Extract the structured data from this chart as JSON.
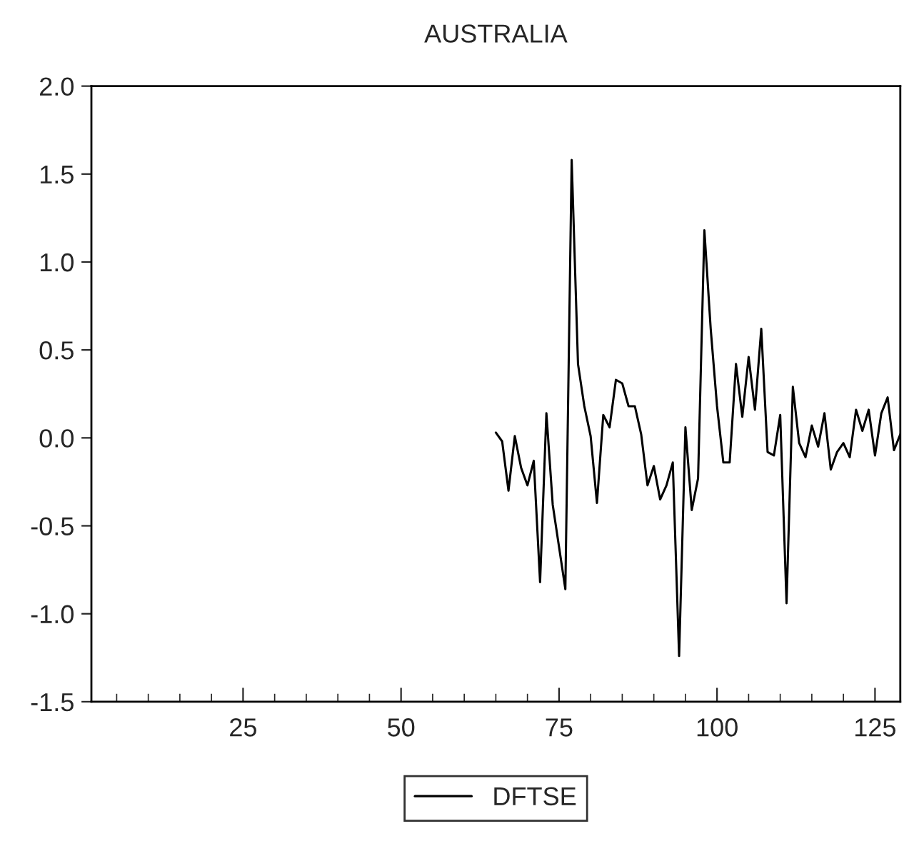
{
  "chart_data": {
    "type": "line",
    "title": "AUSTRALIA",
    "x": [
      65,
      66,
      67,
      68,
      69,
      70,
      71,
      72,
      73,
      74,
      75,
      76,
      77,
      78,
      79,
      80,
      81,
      82,
      83,
      84,
      85,
      86,
      87,
      88,
      89,
      90,
      91,
      92,
      93,
      94,
      95,
      96,
      97,
      98,
      99,
      100,
      101,
      102,
      103,
      104,
      105,
      106,
      107,
      108,
      109,
      110,
      111,
      112,
      113,
      114,
      115,
      116,
      117,
      118,
      119,
      120,
      121,
      122,
      123,
      124,
      125,
      126,
      127,
      128,
      129
    ],
    "series": [
      {
        "name": "DFTSE",
        "color": "#000000",
        "values": [
          0.03,
          -0.02,
          -0.3,
          0.01,
          -0.17,
          -0.27,
          -0.13,
          -0.82,
          0.14,
          -0.38,
          -0.62,
          -0.86,
          1.58,
          0.42,
          0.18,
          0.01,
          -0.37,
          0.13,
          0.06,
          0.33,
          0.31,
          0.18,
          0.18,
          0.02,
          -0.27,
          -0.16,
          -0.35,
          -0.27,
          -0.14,
          -1.24,
          0.06,
          -0.41,
          -0.23,
          1.18,
          0.62,
          0.18,
          -0.14,
          -0.14,
          0.42,
          0.12,
          0.46,
          0.16,
          0.62,
          -0.08,
          -0.1,
          0.13,
          -0.94,
          0.29,
          -0.03,
          -0.11,
          0.07,
          -0.05,
          0.14,
          -0.18,
          -0.08,
          -0.03,
          -0.11,
          0.16,
          0.04,
          0.16,
          -0.1,
          0.14,
          0.23,
          -0.07,
          0.02
        ]
      }
    ],
    "xlim": [
      1,
      129
    ],
    "xticks": [
      25,
      50,
      75,
      100,
      125
    ],
    "ylim": [
      -1.5,
      2.0
    ],
    "yticks": [
      {
        "value": -1.5,
        "label": "-1.5"
      },
      {
        "value": -1.0,
        "label": "-1.0"
      },
      {
        "value": -0.5,
        "label": "-0.5"
      },
      {
        "value": 0.0,
        "label": "0.0"
      },
      {
        "value": 0.5,
        "label": "0.5"
      },
      {
        "value": 1.0,
        "label": "1.0"
      },
      {
        "value": 1.5,
        "label": "1.5"
      },
      {
        "value": 2.0,
        "label": "2.0"
      }
    ],
    "grid": false,
    "legend": "bottom",
    "line_style": "solid",
    "marker": "none"
  }
}
